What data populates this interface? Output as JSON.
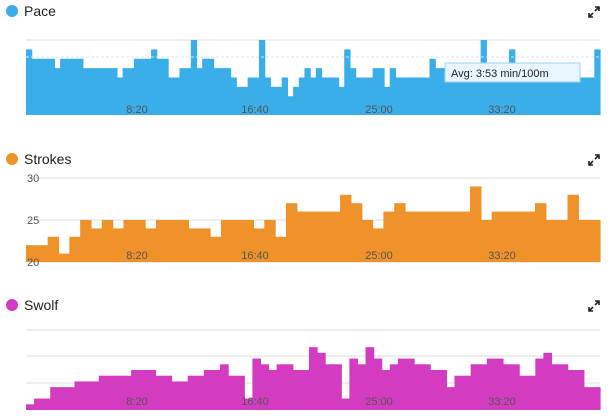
{
  "colors": {
    "pace": "#3aaee8",
    "strokes": "#f0922a",
    "swolf": "#d33cc0",
    "grid": "#dddddd",
    "avg_line": "#888888"
  },
  "chart_data": [
    {
      "type": "bar",
      "title": "Pace",
      "x_tick_labels": [
        "8:20",
        "16:40",
        "25:00",
        "33:20"
      ],
      "avg_label": "Avg: 3:53 min/100m",
      "note": "Inverted axis: lower pace plotted higher. Values are approximate bar levels (relative).",
      "values": [
        2,
        3,
        3,
        3,
        3,
        4,
        3,
        3,
        3,
        3,
        4,
        4,
        4,
        4,
        4,
        4,
        5,
        4,
        4,
        3,
        3,
        3,
        2,
        3,
        3,
        5,
        5,
        4,
        4,
        1,
        4,
        3,
        3,
        4,
        4,
        4,
        5,
        6,
        6,
        5,
        5,
        1,
        5,
        6,
        6,
        5,
        7,
        6,
        5,
        4,
        5,
        4,
        5,
        5,
        5,
        6,
        2,
        4,
        5,
        5,
        5,
        4,
        4,
        6,
        4,
        5,
        5,
        5,
        5,
        5,
        5,
        3,
        4,
        4,
        5,
        5,
        5,
        5,
        5,
        5,
        1,
        5,
        5,
        5,
        5,
        2,
        5,
        5,
        5,
        5,
        5,
        5,
        5,
        5,
        5,
        4,
        4,
        5,
        5,
        5,
        2
      ]
    },
    {
      "type": "bar",
      "title": "Strokes",
      "y_tick_labels": [
        "30",
        "25",
        "20"
      ],
      "x_tick_labels": [
        "8:20",
        "16:40",
        "25:00",
        "33:20"
      ],
      "ylim": [
        20,
        30
      ],
      "values": [
        22,
        22,
        23,
        21,
        23,
        25,
        24,
        25,
        24,
        25,
        25,
        24,
        25,
        25,
        25,
        24,
        24,
        23,
        25,
        25,
        25,
        24,
        25,
        23,
        27,
        26,
        26,
        26,
        26,
        28,
        27,
        25,
        24,
        26,
        27,
        26,
        26,
        26,
        26,
        26,
        26,
        29,
        25,
        26,
        26,
        26,
        26,
        27,
        25,
        25,
        28,
        25,
        25
      ]
    },
    {
      "type": "bar",
      "title": "Swolf",
      "x_tick_labels": [
        "8:20",
        "16:40",
        "25:00",
        "33:20"
      ],
      "note": "No y tick labels shown; values are relative bar heights.",
      "values": [
        1,
        2,
        2,
        4,
        4,
        4,
        5,
        5,
        5,
        6,
        6,
        6,
        6,
        7,
        7,
        7,
        6,
        6,
        5,
        5,
        6,
        6,
        7,
        7,
        8,
        6,
        6,
        2,
        9,
        8,
        7,
        8,
        8,
        7,
        7,
        11,
        10,
        8,
        8,
        2,
        9,
        8,
        11,
        9,
        7,
        8,
        9,
        9,
        8,
        8,
        7,
        7,
        4,
        6,
        6,
        8,
        8,
        9,
        9,
        8,
        8,
        6,
        6,
        9,
        10,
        8,
        8,
        7,
        7,
        4,
        4
      ]
    }
  ]
}
